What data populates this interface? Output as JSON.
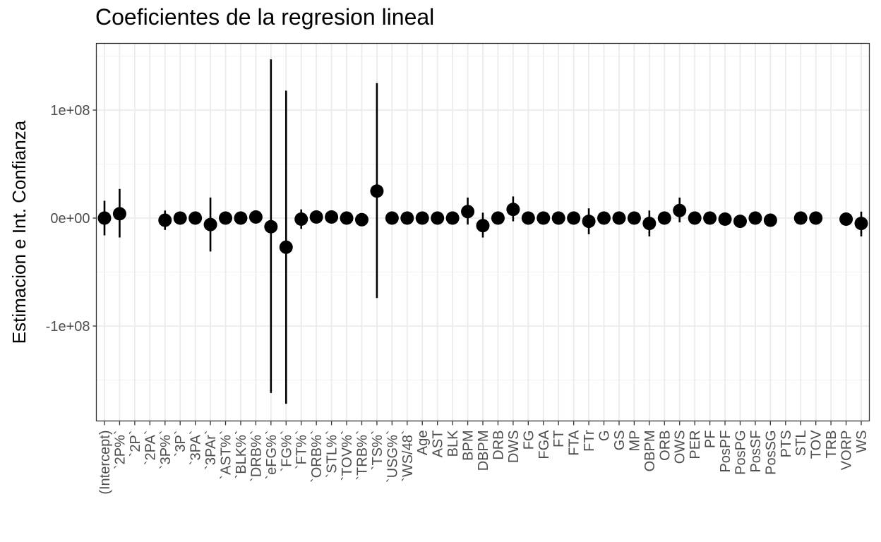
{
  "chart_data": {
    "type": "scatter",
    "title": "Coeficientes de la regresion lineal",
    "xlabel": "",
    "ylabel": "Estimacion e Int. Confianza",
    "ylim": [
      -187000000,
      162000000
    ],
    "y_ticks": [
      {
        "value": 100000000,
        "label": "1e+08"
      },
      {
        "value": 0,
        "label": "0e+00"
      },
      {
        "value": -100000000,
        "label": "-1e+08"
      }
    ],
    "grid": true,
    "legend": "none",
    "colors": {
      "points": "#000000",
      "grid_major": "#ebebeb",
      "grid_minor": "#f2f2f2",
      "panel_border": "#333333",
      "tick_label": "#4d4d4d"
    },
    "categories": [
      "(Intercept)",
      "`2P%`",
      "`2P`",
      "`2PA`",
      "`3P%`",
      "`3P`",
      "`3PA`",
      "`3PAr`",
      "`AST%`",
      "`BLK%`",
      "`DRB%`",
      "`eFG%`",
      "`FG%`",
      "`FT%`",
      "`ORB%`",
      "`STL%`",
      "`TOV%`",
      "`TRB%`",
      "`TS%`",
      "`USG%`",
      "`WS/48`",
      "Age",
      "AST",
      "BLK",
      "BPM",
      "DBPM",
      "DRB",
      "DWS",
      "FG",
      "FGA",
      "FT",
      "FTA",
      "FTr",
      "G",
      "GS",
      "MP",
      "OBPM",
      "ORB",
      "OWS",
      "PER",
      "PF",
      "PosPF",
      "PosPG",
      "PosSF",
      "PosSG",
      "PTS",
      "STL",
      "TOV",
      "TRB",
      "VORP",
      "WS"
    ],
    "estimates": [
      0,
      4000000,
      null,
      null,
      -2000000,
      0,
      0,
      -6000000,
      0,
      0,
      1000000,
      -8000000,
      -27000000,
      -1000000,
      1000000,
      1000000,
      0,
      -1500000,
      25000000,
      0,
      0,
      0,
      0,
      0,
      6000000,
      -7000000,
      0,
      8000000,
      0,
      0,
      0,
      0,
      -3000000,
      0,
      0,
      0,
      -5000000,
      0,
      7000000,
      0,
      0,
      -1000000,
      -3000000,
      0,
      -2000000,
      null,
      0,
      0,
      null,
      -1000000,
      -5000000
    ],
    "ci_lower": [
      -16000000,
      -18000000,
      null,
      null,
      -11000000,
      -1000000,
      -1000000,
      -31000000,
      -1000000,
      -1000000,
      -1000000,
      -162000000,
      -172000000,
      -10000000,
      -1000000,
      -1000000,
      -1000000,
      -3000000,
      -74000000,
      -1000000,
      -1000000,
      -1000000,
      -1000000,
      -1000000,
      -6000000,
      -18000000,
      -2000000,
      -3000000,
      -1000000,
      -1000000,
      -1000000,
      -1000000,
      -15000000,
      -1000000,
      -1000000,
      -1000000,
      -17000000,
      -2000000,
      -4000000,
      -1000000,
      -1000000,
      -2000000,
      -4000000,
      -1000000,
      -3000000,
      null,
      -1000000,
      -1000000,
      null,
      -2000000,
      -17000000
    ],
    "ci_upper": [
      16000000,
      27000000,
      null,
      null,
      7000000,
      1000000,
      1000000,
      19000000,
      1000000,
      1000000,
      3000000,
      147000000,
      118000000,
      8000000,
      3000000,
      3000000,
      1000000,
      0,
      125000000,
      1000000,
      1000000,
      1000000,
      1000000,
      1000000,
      19000000,
      5000000,
      2000000,
      20000000,
      1000000,
      1000000,
      1000000,
      1000000,
      9000000,
      1000000,
      1000000,
      1000000,
      7000000,
      2000000,
      19000000,
      1000000,
      1000000,
      0,
      -2000000,
      1000000,
      -1000000,
      null,
      1000000,
      1000000,
      null,
      0,
      6000000
    ]
  }
}
